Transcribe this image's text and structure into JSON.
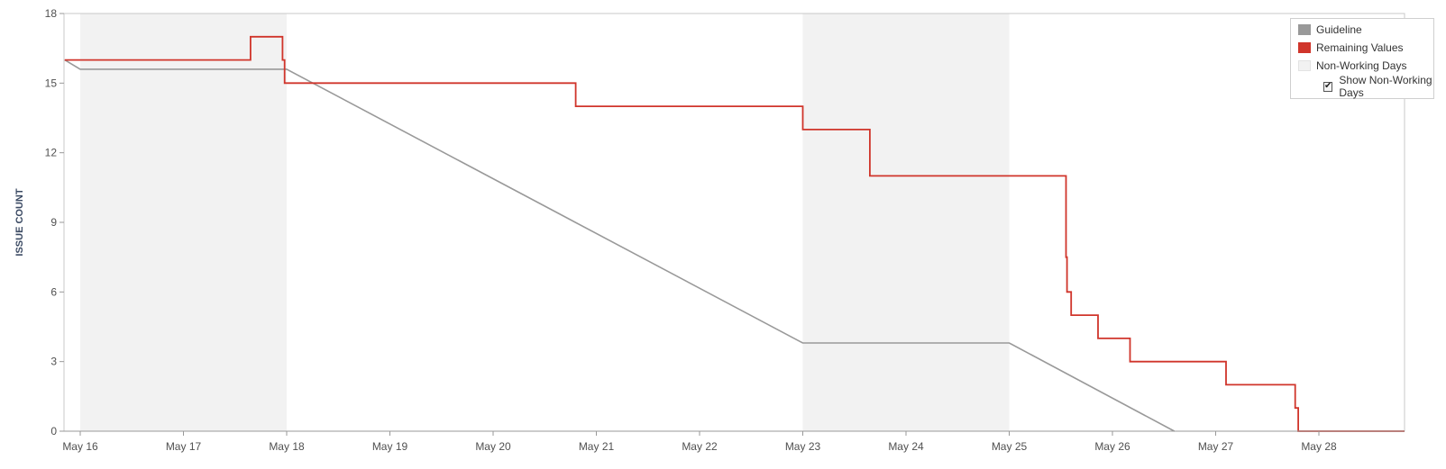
{
  "chart_data": {
    "type": "line",
    "title": "",
    "xlabel": "",
    "ylabel": "ISSUE COUNT",
    "ylim": [
      0,
      18
    ],
    "yticks": [
      0,
      3,
      6,
      9,
      12,
      15,
      18
    ],
    "xlim": [
      0,
      13.12
    ],
    "xticks": [
      {
        "x": 0,
        "label": "May 16"
      },
      {
        "x": 1,
        "label": "May 17"
      },
      {
        "x": 2,
        "label": "May 18"
      },
      {
        "x": 3,
        "label": "May 19"
      },
      {
        "x": 4,
        "label": "May 20"
      },
      {
        "x": 5,
        "label": "May 21"
      },
      {
        "x": 6,
        "label": "May 22"
      },
      {
        "x": 7,
        "label": "May 23"
      },
      {
        "x": 8,
        "label": "May 24"
      },
      {
        "x": 9,
        "label": "May 25"
      },
      {
        "x": 10,
        "label": "May 26"
      },
      {
        "x": 11,
        "label": "May 27"
      },
      {
        "x": 12,
        "label": "May 28"
      }
    ],
    "non_working_days": [
      [
        0,
        2
      ],
      [
        7,
        9
      ]
    ],
    "series": [
      {
        "name": "Guideline",
        "color": "#999999",
        "points": [
          [
            -0.15,
            16
          ],
          [
            0,
            15.6
          ],
          [
            2,
            15.6
          ],
          [
            7,
            3.8
          ],
          [
            9,
            3.8
          ],
          [
            10.6,
            0
          ]
        ]
      },
      {
        "name": "Remaining Values",
        "color": "#d0352b",
        "points": [
          [
            -0.15,
            16
          ],
          [
            1.65,
            16
          ],
          [
            1.65,
            17
          ],
          [
            1.96,
            17
          ],
          [
            1.96,
            16
          ],
          [
            1.98,
            16
          ],
          [
            1.98,
            15
          ],
          [
            4.8,
            15
          ],
          [
            4.8,
            14
          ],
          [
            7,
            14
          ],
          [
            7,
            13
          ],
          [
            7.65,
            13
          ],
          [
            7.65,
            11
          ],
          [
            9.55,
            11
          ],
          [
            9.55,
            7.5
          ],
          [
            9.56,
            7.5
          ],
          [
            9.56,
            6
          ],
          [
            9.6,
            6
          ],
          [
            9.6,
            5
          ],
          [
            9.86,
            5
          ],
          [
            9.86,
            4
          ],
          [
            10.17,
            4
          ],
          [
            10.17,
            3
          ],
          [
            11.1,
            3
          ],
          [
            11.1,
            2
          ],
          [
            11.77,
            2
          ],
          [
            11.77,
            1
          ],
          [
            11.8,
            1
          ],
          [
            11.8,
            0
          ],
          [
            13.12,
            0
          ]
        ]
      }
    ],
    "legend": {
      "position": "top-right",
      "items": [
        {
          "label": "Guideline",
          "color": "#999999"
        },
        {
          "label": "Remaining Values",
          "color": "#d0352b"
        },
        {
          "label": "Non-Working Days",
          "color": "#f2f2f2"
        }
      ],
      "checkbox_label": "Show Non-Working Days",
      "checkbox_checked": true,
      "checkbox_glyph": "✔"
    }
  }
}
